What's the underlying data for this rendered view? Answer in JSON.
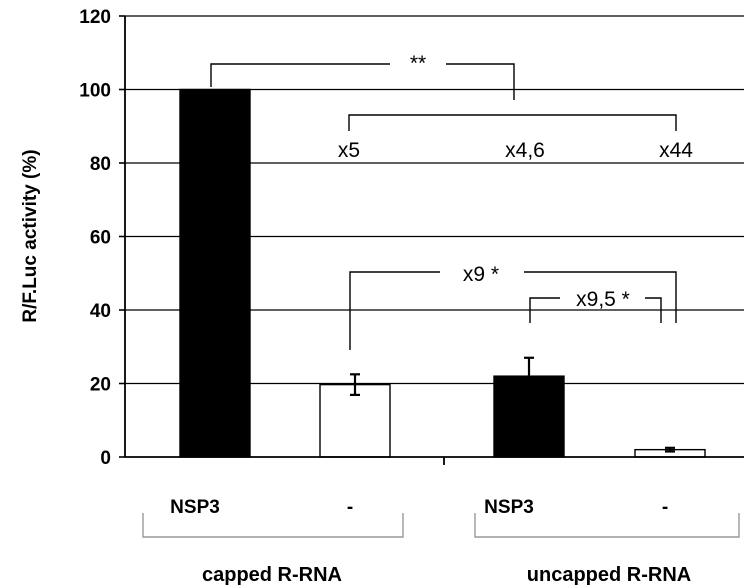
{
  "chart_data": {
    "type": "bar",
    "ylabel": "R/F.Luc activity (%)",
    "ylim": [
      0,
      120
    ],
    "yticks": [
      "0",
      "20",
      "40",
      "60",
      "80",
      "100",
      "120"
    ],
    "grid": true,
    "bars": [
      {
        "label": "NSP3",
        "group": "capped R-RNA",
        "value": 100,
        "error": 0,
        "fill": "#000000"
      },
      {
        "label": "-",
        "group": "capped R-RNA",
        "value": 19.7,
        "error": 2.8,
        "fill": "#ffffff"
      },
      {
        "label": "NSP3",
        "group": "uncapped R-RNA",
        "value": 22,
        "error": 5,
        "fill": "#000000"
      },
      {
        "label": "-",
        "group": "uncapped R-RNA",
        "value": 2,
        "error": 0.5,
        "fill": "#ffffff"
      }
    ],
    "groups": [
      "capped R-RNA",
      "uncapped R-RNA"
    ],
    "annotations": {
      "sig_top": "**",
      "fold_a": "x5",
      "fold_b": "x4,6",
      "fold_c": "x44",
      "sig_mid": "x9 *",
      "sig_low": "x9,5 *"
    }
  }
}
